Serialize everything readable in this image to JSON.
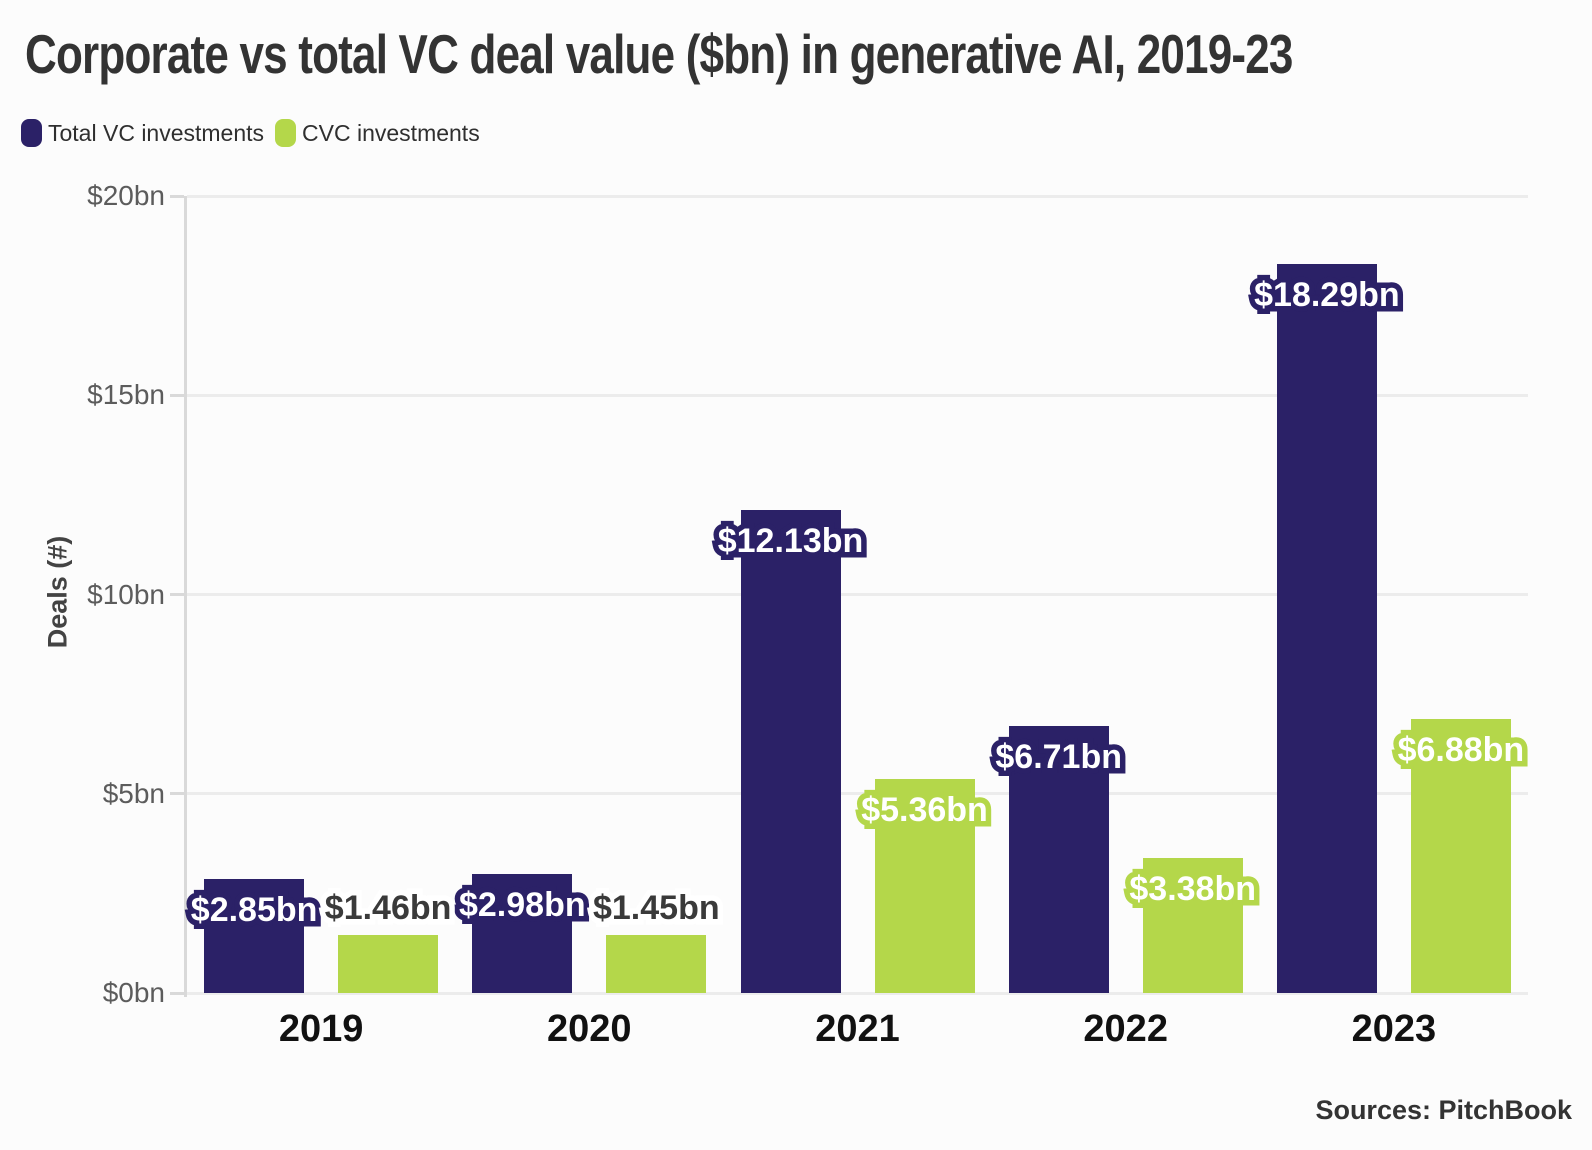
{
  "chart": {
    "title": "Corporate vs total VC deal value ($bn) in generative AI, 2019-23",
    "y_axis_title": "Deals (#)",
    "source": "Sources: PitchBook"
  },
  "legend": [
    {
      "label": "Total VC investments",
      "color": "#2b2167"
    },
    {
      "label": "CVC investments",
      "color": "#b4d74a"
    }
  ],
  "chart_data": {
    "type": "bar",
    "title": "Corporate vs total VC deal value ($bn) in generative AI, 2019-23",
    "categories": [
      "2019",
      "2020",
      "2021",
      "2022",
      "2023"
    ],
    "series": [
      {
        "name": "Total VC investments",
        "color": "#2b2167",
        "values": [
          2.85,
          2.98,
          12.13,
          6.71,
          18.29
        ],
        "data_labels": [
          "$2.85bn",
          "$2.98bn",
          "$12.13bn",
          "$6.71bn",
          "$18.29bn"
        ]
      },
      {
        "name": "CVC investments",
        "color": "#b4d74a",
        "values": [
          1.46,
          1.45,
          5.36,
          3.38,
          6.88
        ],
        "data_labels": [
          "$1.46bn",
          "$1.45bn",
          "$5.36bn",
          "$3.38bn",
          "$6.88bn"
        ]
      }
    ],
    "xlabel": "",
    "ylabel": "Deals (#)",
    "ylim": [
      0,
      20
    ],
    "yticks": [
      0,
      5,
      10,
      15,
      20
    ],
    "ytick_labels": [
      "$0bn",
      "$5bn",
      "$10bn",
      "$15bn",
      "$20bn"
    ],
    "grid": true,
    "legend_position": "top-left",
    "source": "Sources: PitchBook",
    "colors": {
      "grid": "#ececec",
      "axis": "#d9d9d9",
      "ytick_text": "#5c5c5c",
      "xtick_text": "#111111",
      "label_inside_text": "#ffffff",
      "label_outside_text": "#3a3a3a",
      "label_outside_stroke": "#ffffff"
    }
  }
}
